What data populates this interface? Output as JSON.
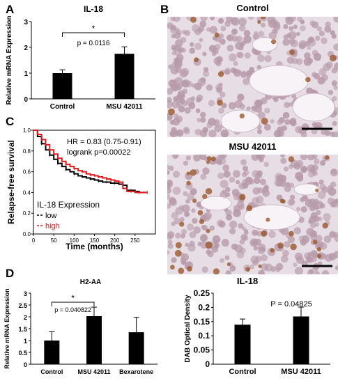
{
  "panels": {
    "a": "A",
    "b": "B",
    "c": "C",
    "d": "D"
  },
  "images": {
    "control_title": "Control",
    "msu_title": "MSU 42011"
  },
  "colors": {
    "bar": "#000000",
    "survival_low": "#000000",
    "survival_high": "#e41a1c",
    "tissue_bg": "#e6dde5",
    "cell": "#b79aa9",
    "dab": "#9b5a2e"
  },
  "chart_data": [
    {
      "id": "A",
      "type": "bar",
      "title": "IL-18",
      "ylabel": "Relative mRNA Expression",
      "categories": [
        "Control",
        "MSU 42011"
      ],
      "values": [
        1.0,
        1.75
      ],
      "errors": [
        0.13,
        0.27
      ],
      "ylim": [
        0,
        3
      ],
      "yticks": [
        "0",
        "1",
        "2",
        "3"
      ],
      "annotation": {
        "pvalue": "p = 0.0116",
        "star": "*"
      }
    },
    {
      "id": "C",
      "type": "line",
      "ylabel": "Relapse-free survival",
      "xlabel": "Time (months)",
      "xlim": [
        0,
        300
      ],
      "ylim": [
        0,
        1.0
      ],
      "xticks": [
        "0",
        "50",
        "100",
        "150",
        "200",
        "250"
      ],
      "yticks": [
        "0.0",
        "0.2",
        "0.4",
        "0.6",
        "0.8",
        "1.0"
      ],
      "hr_text": "HR = 0.83 (0.75-0.91)",
      "logrank_text": "logrank p=0.00022",
      "legend_title": "IL-18 Expression",
      "series": [
        {
          "name": "low",
          "x": [
            0,
            10,
            20,
            30,
            40,
            50,
            60,
            70,
            80,
            90,
            100,
            110,
            120,
            130,
            140,
            150,
            160,
            170,
            180,
            190,
            200,
            210,
            220,
            230,
            240,
            250,
            260,
            270,
            280
          ],
          "y": [
            1.0,
            0.94,
            0.87,
            0.81,
            0.76,
            0.72,
            0.68,
            0.65,
            0.62,
            0.6,
            0.58,
            0.56,
            0.55,
            0.54,
            0.53,
            0.52,
            0.51,
            0.5,
            0.5,
            0.49,
            0.49,
            0.48,
            0.47,
            0.42,
            0.42,
            0.41,
            0.4,
            0.4,
            0.4
          ]
        },
        {
          "name": "high",
          "x": [
            0,
            10,
            20,
            30,
            40,
            50,
            60,
            70,
            80,
            90,
            100,
            110,
            120,
            130,
            140,
            150,
            160,
            170,
            180,
            190,
            200,
            210,
            220,
            230,
            240,
            250,
            260,
            270,
            280
          ],
          "y": [
            1.0,
            0.96,
            0.91,
            0.86,
            0.81,
            0.77,
            0.73,
            0.7,
            0.67,
            0.65,
            0.63,
            0.61,
            0.6,
            0.58,
            0.57,
            0.56,
            0.55,
            0.54,
            0.53,
            0.52,
            0.51,
            0.5,
            0.44,
            0.41,
            0.41,
            0.4,
            0.4,
            0.4,
            0.4
          ]
        }
      ]
    },
    {
      "id": "D",
      "type": "bar",
      "title": "H2-AA",
      "ylabel": "Relative mRNA Expression",
      "categories": [
        "Control",
        "MSU 42011",
        "Bexarotene"
      ],
      "values": [
        1.0,
        2.03,
        1.35
      ],
      "errors": [
        0.37,
        0.38,
        0.63
      ],
      "ylim": [
        0,
        3
      ],
      "yticks": [
        "0",
        "0.5",
        "1",
        "1.5",
        "2",
        "2.5",
        "3"
      ],
      "annotation": {
        "pvalue": "p = 0.040822",
        "star": "*"
      }
    },
    {
      "id": "E",
      "type": "bar",
      "title": "IL-18",
      "ylabel": "DAB Optical Density",
      "categories": [
        "Control",
        "MSU 42011"
      ],
      "values": [
        0.139,
        0.168
      ],
      "errors": [
        0.02,
        0.033
      ],
      "ylim": [
        0,
        0.25
      ],
      "yticks": [
        "0",
        "0.05",
        "0.1",
        "0.15",
        "0.2",
        "0.25"
      ],
      "annotation": {
        "pvalue": "P = 0.04825"
      }
    }
  ]
}
